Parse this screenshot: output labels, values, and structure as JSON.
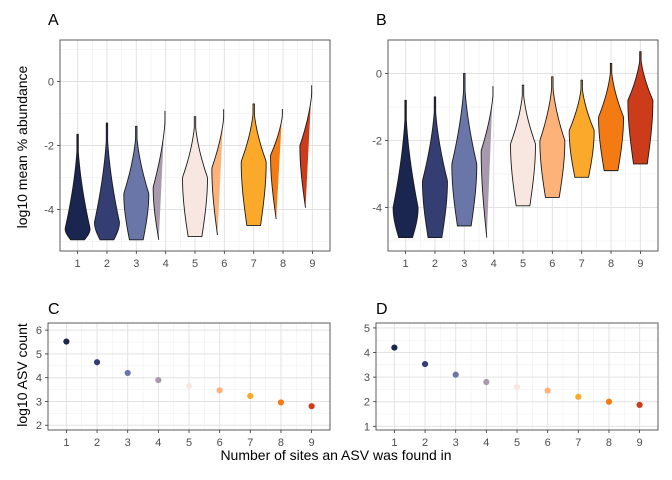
{
  "colors": [
    "#1a2550",
    "#353e72",
    "#6b76a8",
    "#a89aac",
    "#f8e7e0",
    "#fdb27a",
    "#fba92b",
    "#f47a14",
    "#cc3c1b"
  ],
  "chart_data": [
    {
      "panel": "A",
      "type": "violin",
      "categories": [
        "1",
        "2",
        "3",
        "4",
        "5",
        "6",
        "7",
        "8",
        "9"
      ],
      "ylabel": "log10 mean % abundance",
      "ylim": [
        -5.3,
        1.3
      ],
      "yticks": [
        -4,
        -2,
        0
      ],
      "series": [
        {
          "category": "1",
          "min": -4.95,
          "max": -1.65,
          "mode": -4.6
        },
        {
          "category": "2",
          "min": -4.95,
          "max": -1.3,
          "mode": -4.4
        },
        {
          "category": "3",
          "min": -4.95,
          "max": -1.4,
          "mode": -3.5
        },
        {
          "category": "4",
          "min": -4.95,
          "max": -0.85,
          "mode": -3.3
        },
        {
          "category": "5",
          "min": -4.85,
          "max": -1.1,
          "mode": -3.0
        },
        {
          "category": "6",
          "min": -4.8,
          "max": -0.8,
          "mode": -2.7
        },
        {
          "category": "7",
          "min": -4.5,
          "max": -0.7,
          "mode": -2.5
        },
        {
          "category": "8",
          "min": -4.3,
          "max": -0.8,
          "mode": -2.3
        },
        {
          "category": "9",
          "min": -3.95,
          "max": -0.05,
          "mode": -2.0
        }
      ]
    },
    {
      "panel": "B",
      "type": "violin",
      "categories": [
        "1",
        "2",
        "3",
        "4",
        "5",
        "6",
        "7",
        "8",
        "9"
      ],
      "ylim": [
        -5.3,
        1.0
      ],
      "yticks": [
        -4,
        -2,
        0
      ],
      "series": [
        {
          "category": "1",
          "min": -4.9,
          "max": -0.8,
          "mode": -4.0
        },
        {
          "category": "2",
          "min": -4.9,
          "max": -0.7,
          "mode": -3.2
        },
        {
          "category": "3",
          "min": -4.55,
          "max": 0.0,
          "mode": -2.7
        },
        {
          "category": "4",
          "min": -4.9,
          "max": -0.3,
          "mode": -2.3
        },
        {
          "category": "5",
          "min": -3.95,
          "max": -0.35,
          "mode": -2.1
        },
        {
          "category": "6",
          "min": -3.7,
          "max": -0.1,
          "mode": -2.0
        },
        {
          "category": "7",
          "min": -3.1,
          "max": -0.2,
          "mode": -1.7
        },
        {
          "category": "8",
          "min": -2.9,
          "max": 0.3,
          "mode": -1.3
        },
        {
          "category": "9",
          "min": -2.7,
          "max": 0.65,
          "mode": -0.8
        }
      ]
    },
    {
      "panel": "C",
      "type": "scatter",
      "x": [
        1,
        2,
        3,
        4,
        5,
        6,
        7,
        8,
        9
      ],
      "y": [
        5.52,
        4.65,
        4.2,
        3.9,
        3.65,
        3.47,
        3.23,
        2.96,
        2.8
      ],
      "ylabel": "log10 ASV count",
      "ylim": [
        1.8,
        6.3
      ],
      "yticks": [
        2,
        3,
        4,
        5,
        6
      ],
      "xticks": [
        1,
        2,
        3,
        4,
        5,
        6,
        7,
        8,
        9
      ]
    },
    {
      "panel": "D",
      "type": "scatter",
      "x": [
        1,
        2,
        3,
        4,
        5,
        6,
        7,
        8,
        9
      ],
      "y": [
        4.2,
        3.53,
        3.1,
        2.8,
        2.6,
        2.45,
        2.2,
        2.0,
        1.87
      ],
      "ylim": [
        0.85,
        5.2
      ],
      "yticks": [
        1,
        2,
        3,
        4,
        5
      ],
      "xticks": [
        1,
        2,
        3,
        4,
        5,
        6,
        7,
        8,
        9
      ]
    }
  ],
  "shared_xlabel": "Number of sites an ASV was found in"
}
